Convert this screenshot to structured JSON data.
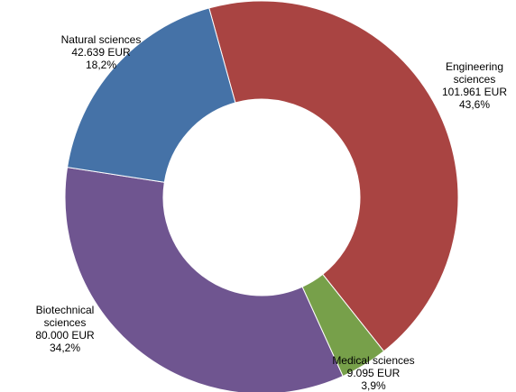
{
  "chart_data": {
    "type": "pie",
    "variant": "donut",
    "slices": [
      {
        "name": "Engineering sciences",
        "name_lines": [
          "Engineering",
          "sciences"
        ],
        "value": 101961,
        "value_label": "101.961 EUR",
        "percent": 43.6,
        "percent_label": "43,6%",
        "color": "#A94442"
      },
      {
        "name": "Medical sciences",
        "name_lines": [
          "Medical sciences"
        ],
        "value": 9095,
        "value_label": "9.095 EUR",
        "percent": 3.9,
        "percent_label": "3,9%",
        "color": "#77A04A"
      },
      {
        "name": "Biotechnical sciences",
        "name_lines": [
          "Biotechnical",
          "sciences"
        ],
        "value": 80000,
        "value_label": "80.000 EUR",
        "percent": 34.2,
        "percent_label": "34,2%",
        "color": "#6F5590"
      },
      {
        "name": "Natural sciences",
        "name_lines": [
          "Natural sciences"
        ],
        "value": 42639,
        "value_label": "42.639 EUR",
        "percent": 18.2,
        "percent_label": "18,2%",
        "color": "#4572A7"
      }
    ]
  }
}
